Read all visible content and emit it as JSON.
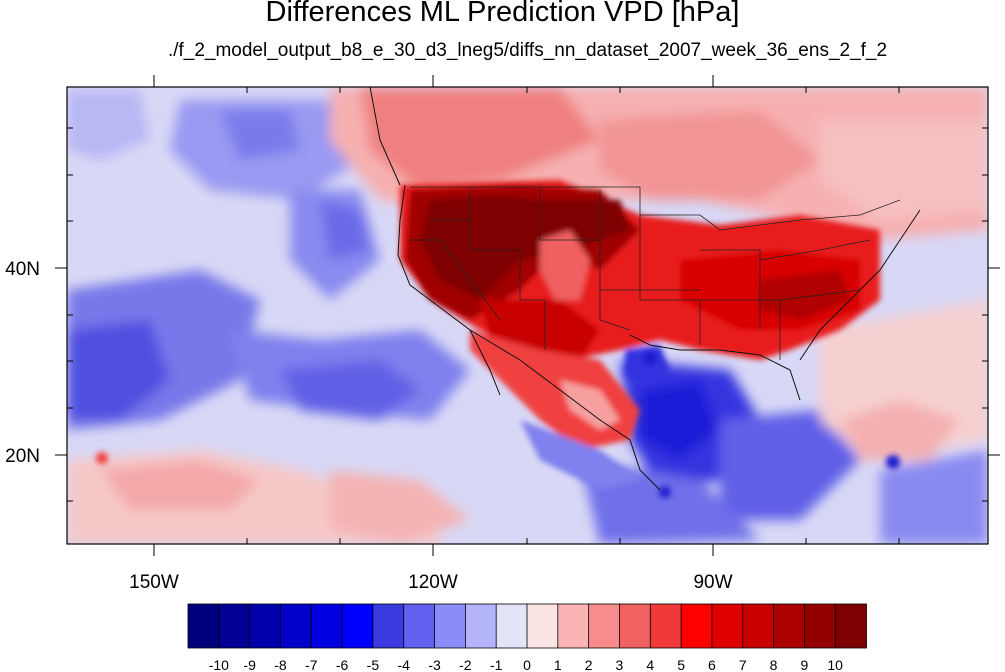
{
  "title": "Differences ML Prediction VPD [hPa]",
  "subtitle": "./f_2_model_output_b8_e_30_d3_lneg5/diffs_nn_dataset_2007_week_36_ens_2_f_2",
  "axes": {
    "x_ticks": [
      "150W",
      "120W",
      "90W"
    ],
    "y_ticks": [
      "40N",
      "20N"
    ]
  },
  "colorbar": {
    "labels": [
      "-10",
      "-9",
      "-8",
      "-7",
      "-6",
      "-5",
      "-4",
      "-3",
      "-2",
      "-1",
      "0",
      "1",
      "2",
      "3",
      "4",
      "5",
      "6",
      "7",
      "8",
      "9",
      "10"
    ],
    "colors": [
      "#00007f",
      "#000094",
      "#0000aa",
      "#0000c8",
      "#0000e0",
      "#0000ff",
      "#3a3ae0",
      "#6262f0",
      "#8c8cf8",
      "#b4b4fa",
      "#e4e4f8",
      "#fbe4e4",
      "#fab4b4",
      "#f88c8c",
      "#f06262",
      "#f03a3a",
      "#ff0000",
      "#e00000",
      "#c80000",
      "#aa0000",
      "#940000",
      "#7f0000"
    ]
  }
}
